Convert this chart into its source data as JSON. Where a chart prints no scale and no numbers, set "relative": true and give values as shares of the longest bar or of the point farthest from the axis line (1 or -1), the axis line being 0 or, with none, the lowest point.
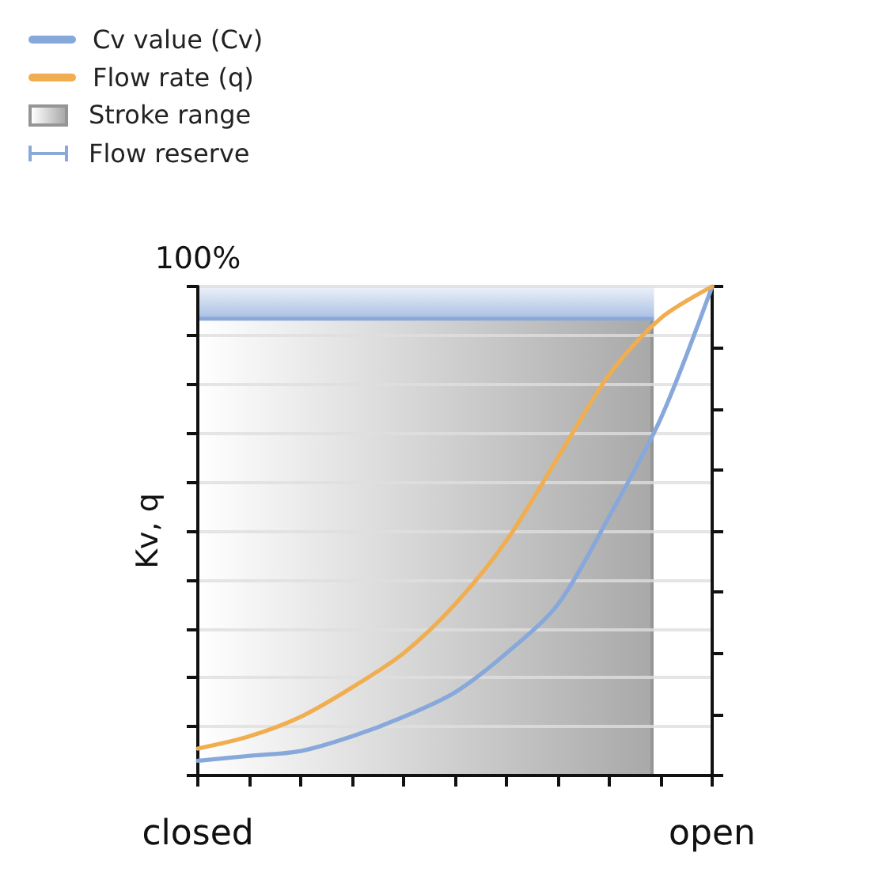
{
  "chart_data": {
    "type": "line",
    "ylabel": "Kv, q",
    "annotations": [
      "100%",
      "Stroke range"
    ],
    "relative": true,
    "categories": [
      "closed",
      null,
      null,
      null,
      null,
      null,
      null,
      null,
      null,
      null,
      "open"
    ],
    "series": [
      {
        "name": "Cv value (Cv)",
        "color": "#87a8da",
        "values": [
          0.03,
          0.04,
          0.05,
          0.08,
          0.12,
          0.17,
          0.25,
          0.35,
          0.53,
          0.73,
          1
        ]
      },
      {
        "name": "Flow rate (q)",
        "color": "#f0ae50",
        "values": [
          0.055,
          0.08,
          0.12,
          0.18,
          0.25,
          0.35,
          0.48,
          0.65,
          0.82,
          0.935,
          1
        ]
      }
    ],
    "bands": [
      {
        "axis": "y",
        "from": 0.93,
        "to": 1,
        "label": "Flow reserve",
        "color": "#8aa8d8"
      }
    ],
    "grid": "y",
    "legend": "top left",
    "marker": "none",
    "line_style": "solid"
  }
}
